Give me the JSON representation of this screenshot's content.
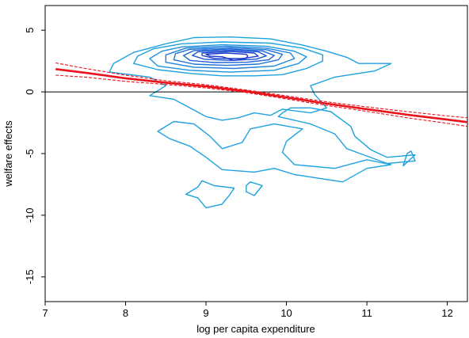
{
  "chart_data": {
    "type": "line",
    "title": "",
    "xlabel": "log per capita expenditure",
    "ylabel": "welfare effects",
    "xlim": [
      7.0,
      12.25
    ],
    "ylim": [
      -17,
      7
    ],
    "x_ticks": [
      "7",
      "8",
      "9",
      "10",
      "11",
      "12"
    ],
    "y_ticks": [
      "5",
      "0",
      "-5",
      "-10",
      "-15"
    ],
    "reference_line_y": 0,
    "grid": false,
    "legend": "none",
    "colors": {
      "fit": "#e8131b",
      "contour_light": "#1ea2e0",
      "contour_dark": "#1a33cc",
      "reference": "#000000"
    },
    "series": [
      {
        "style": "solid",
        "x": [
          7.13,
          7.5,
          8.0,
          8.5,
          9.0,
          9.5,
          10.0,
          10.5,
          11.0,
          11.5,
          12.0,
          12.25
        ],
        "y": [
          1.85,
          1.55,
          1.1,
          0.75,
          0.45,
          0.05,
          -0.45,
          -0.95,
          -1.4,
          -1.85,
          -2.25,
          -2.45
        ]
      },
      {
        "style": "dashed",
        "x": [
          7.13,
          7.5,
          8.0,
          8.5,
          9.0,
          9.5,
          10.0,
          10.5,
          11.0,
          11.5,
          12.0,
          12.25
        ],
        "y": [
          2.35,
          1.9,
          1.35,
          0.9,
          0.58,
          0.15,
          -0.32,
          -0.8,
          -1.22,
          -1.6,
          -1.95,
          -2.1
        ]
      },
      {
        "style": "dashed",
        "x": [
          7.13,
          7.5,
          8.0,
          8.5,
          9.0,
          9.5,
          10.0,
          10.5,
          11.0,
          11.5,
          12.0,
          12.25
        ],
        "y": [
          1.35,
          1.2,
          0.85,
          0.6,
          0.32,
          -0.05,
          -0.58,
          -1.1,
          -1.58,
          -2.1,
          -2.55,
          -2.8
        ]
      }
    ],
    "contours": [
      {
        "level": "outer-left",
        "points": [
          [
            8.85,
            4.4
          ],
          [
            9.3,
            4.45
          ],
          [
            9.8,
            4.3
          ],
          [
            10.2,
            3.8
          ],
          [
            10.5,
            3.3
          ],
          [
            10.75,
            2.8
          ],
          [
            10.9,
            2.3
          ],
          [
            11.3,
            2.3
          ],
          [
            11.1,
            1.7
          ],
          [
            10.6,
            1.2
          ],
          [
            10.3,
            0.5
          ],
          [
            10.35,
            -0.2
          ],
          [
            10.5,
            -1.3
          ],
          [
            10.3,
            -1.7
          ],
          [
            9.95,
            -1.4
          ],
          [
            9.8,
            -1.9
          ],
          [
            9.6,
            -1.7
          ],
          [
            9.4,
            -2.1
          ],
          [
            9.2,
            -2.3
          ],
          [
            9.0,
            -2.0
          ],
          [
            8.8,
            -1.3
          ],
          [
            8.6,
            -0.6
          ],
          [
            8.3,
            -0.3
          ],
          [
            8.5,
            0.5
          ],
          [
            8.3,
            1.2
          ],
          [
            7.8,
            1.6
          ],
          [
            7.85,
            2.3
          ],
          [
            8.1,
            3.2
          ],
          [
            8.5,
            3.9
          ]
        ]
      },
      {
        "level": "outer-right",
        "points": [
          [
            9.9,
            -2.0
          ],
          [
            10.3,
            -2.6
          ],
          [
            10.6,
            -3.4
          ],
          [
            10.75,
            -4.6
          ],
          [
            11.0,
            -5.2
          ],
          [
            11.25,
            -5.8
          ],
          [
            11.6,
            -5.6
          ],
          [
            11.55,
            -4.8
          ],
          [
            11.5,
            -5.0
          ],
          [
            11.45,
            -6.0
          ],
          [
            11.6,
            -5.1
          ],
          [
            11.25,
            -5.3
          ],
          [
            11.05,
            -4.7
          ],
          [
            10.85,
            -3.6
          ],
          [
            10.8,
            -2.8
          ],
          [
            10.55,
            -1.6
          ],
          [
            10.3,
            -1.3
          ],
          [
            10.05,
            -1.3
          ],
          [
            9.95,
            -1.7
          ]
        ]
      },
      {
        "level": "outer-bottom",
        "points": [
          [
            8.55,
            -3.8
          ],
          [
            8.8,
            -4.4
          ],
          [
            9.0,
            -5.3
          ],
          [
            9.2,
            -6.3
          ],
          [
            9.6,
            -6.5
          ],
          [
            9.85,
            -6.2
          ],
          [
            10.1,
            -6.7
          ],
          [
            10.4,
            -7.0
          ],
          [
            10.7,
            -7.3
          ],
          [
            11.0,
            -6.2
          ],
          [
            11.3,
            -5.9
          ],
          [
            11.0,
            -5.5
          ],
          [
            10.6,
            -6.2
          ],
          [
            10.1,
            -5.9
          ],
          [
            9.95,
            -4.9
          ],
          [
            10.0,
            -4.0
          ],
          [
            10.2,
            -3.0
          ],
          [
            9.85,
            -2.6
          ],
          [
            9.55,
            -3.0
          ],
          [
            9.45,
            -4.1
          ],
          [
            9.2,
            -4.6
          ],
          [
            9.05,
            -3.6
          ],
          [
            8.85,
            -2.6
          ],
          [
            8.6,
            -2.4
          ],
          [
            8.4,
            -3.2
          ]
        ]
      },
      {
        "level": "outer-tail",
        "points": [
          [
            8.95,
            -7.2
          ],
          [
            9.1,
            -7.6
          ],
          [
            9.35,
            -7.8
          ],
          [
            9.3,
            -8.3
          ],
          [
            9.2,
            -9.1
          ],
          [
            9.0,
            -9.4
          ],
          [
            8.9,
            -8.6
          ],
          [
            8.75,
            -8.3
          ],
          [
            8.9,
            -7.7
          ]
        ]
      },
      {
        "level": "outer-island",
        "points": [
          [
            9.55,
            -7.3
          ],
          [
            9.7,
            -7.6
          ],
          [
            9.6,
            -8.4
          ],
          [
            9.5,
            -8.1
          ],
          [
            9.5,
            -7.6
          ]
        ]
      },
      {
        "level": "ring-2",
        "points": [
          [
            8.7,
            3.9
          ],
          [
            9.2,
            4.05
          ],
          [
            9.8,
            3.95
          ],
          [
            10.2,
            3.55
          ],
          [
            10.45,
            3.0
          ],
          [
            10.45,
            2.5
          ],
          [
            10.25,
            1.9
          ],
          [
            9.95,
            1.4
          ],
          [
            9.6,
            1.3
          ],
          [
            9.2,
            1.3
          ],
          [
            8.8,
            1.5
          ],
          [
            8.4,
            1.8
          ],
          [
            8.1,
            2.3
          ],
          [
            8.15,
            2.9
          ],
          [
            8.35,
            3.5
          ]
        ]
      },
      {
        "level": "ring-3",
        "points": [
          [
            8.7,
            3.65
          ],
          [
            9.2,
            3.82
          ],
          [
            9.75,
            3.7
          ],
          [
            10.1,
            3.3
          ],
          [
            10.25,
            2.85
          ],
          [
            10.15,
            2.3
          ],
          [
            9.85,
            1.75
          ],
          [
            9.3,
            1.6
          ],
          [
            8.8,
            1.75
          ],
          [
            8.4,
            2.1
          ],
          [
            8.3,
            2.7
          ],
          [
            8.45,
            3.3
          ]
        ]
      },
      {
        "level": "ring-4",
        "points": [
          [
            8.75,
            3.55
          ],
          [
            9.25,
            3.7
          ],
          [
            9.75,
            3.55
          ],
          [
            10.05,
            3.15
          ],
          [
            10.1,
            2.7
          ],
          [
            9.85,
            2.1
          ],
          [
            9.35,
            1.9
          ],
          [
            8.85,
            2.0
          ],
          [
            8.5,
            2.4
          ],
          [
            8.5,
            3.0
          ]
        ]
      },
      {
        "level": "ring-5",
        "points": [
          [
            8.8,
            3.45
          ],
          [
            9.3,
            3.58
          ],
          [
            9.75,
            3.42
          ],
          [
            9.95,
            3.05
          ],
          [
            9.9,
            2.6
          ],
          [
            9.65,
            2.25
          ],
          [
            9.25,
            2.15
          ],
          [
            8.85,
            2.25
          ],
          [
            8.6,
            2.6
          ],
          [
            8.62,
            3.1
          ]
        ]
      },
      {
        "level": "ring-6",
        "points": [
          [
            8.85,
            3.35
          ],
          [
            9.3,
            3.48
          ],
          [
            9.7,
            3.32
          ],
          [
            9.85,
            2.95
          ],
          [
            9.78,
            2.6
          ],
          [
            9.5,
            2.4
          ],
          [
            9.1,
            2.38
          ],
          [
            8.8,
            2.55
          ],
          [
            8.72,
            2.95
          ]
        ]
      },
      {
        "level": "ring-7",
        "points": [
          [
            8.9,
            3.25
          ],
          [
            9.3,
            3.38
          ],
          [
            9.65,
            3.25
          ],
          [
            9.75,
            2.92
          ],
          [
            9.62,
            2.65
          ],
          [
            9.3,
            2.55
          ],
          [
            8.98,
            2.65
          ],
          [
            8.83,
            2.95
          ]
        ]
      },
      {
        "level": "ring-8",
        "points": [
          [
            8.95,
            3.15
          ],
          [
            9.3,
            3.28
          ],
          [
            9.6,
            3.15
          ],
          [
            9.65,
            2.9
          ],
          [
            9.45,
            2.7
          ],
          [
            9.1,
            2.72
          ],
          [
            8.95,
            2.95
          ]
        ]
      },
      {
        "level": "ring-9",
        "points": [
          [
            9.0,
            3.05
          ],
          [
            9.25,
            3.15
          ],
          [
            9.5,
            3.05
          ],
          [
            9.52,
            2.92
          ],
          [
            9.5,
            2.72
          ],
          [
            9.35,
            2.55
          ],
          [
            9.2,
            2.85
          ],
          [
            9.05,
            2.9
          ]
        ]
      }
    ]
  }
}
